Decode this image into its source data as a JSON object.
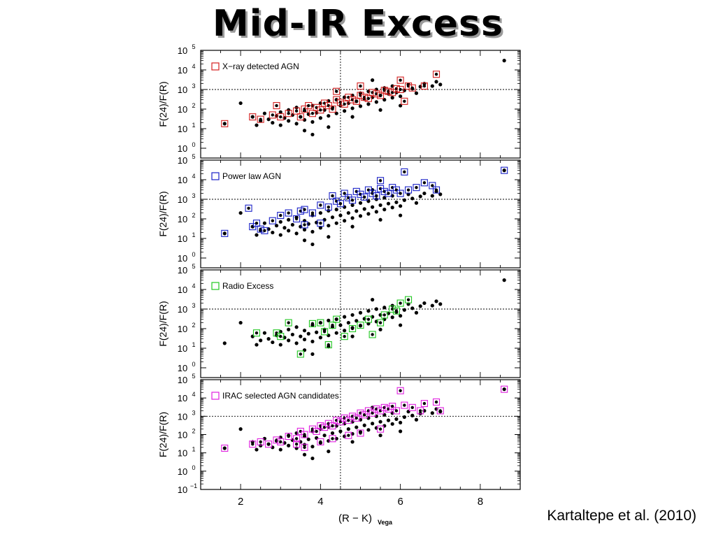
{
  "slide": {
    "title": "Mid-IR Excess",
    "citation": "Kartaltepe et al. (2010)"
  },
  "chart_data": {
    "type": "scatter",
    "xlabel": "(R − K)",
    "xlabel_subscript": "Vega",
    "ylabel": "F(24)/F(R)",
    "y_scale": "log",
    "xlim": [
      1.0,
      9.0
    ],
    "x_ticks": [
      "2",
      "4",
      "6",
      "8"
    ],
    "x_tick_values": [
      2,
      4,
      6,
      8
    ],
    "reference_lines": {
      "x": 4.5,
      "y": 1000
    },
    "background_series": {
      "name": "",
      "color": "#000000",
      "marker": "filled-circle",
      "description_of_trend": "y increases roughly from 10 at R-K≈2.5 to 1000 at R-K≈6.5",
      "points": [
        [
          2.3,
          40
        ],
        [
          2.4,
          15
        ],
        [
          2.5,
          25
        ],
        [
          2.6,
          60
        ],
        [
          2.7,
          30
        ],
        [
          2.8,
          20
        ],
        [
          2.9,
          45
        ],
        [
          3.0,
          15
        ],
        [
          3.0,
          70
        ],
        [
          3.1,
          35
        ],
        [
          3.2,
          25
        ],
        [
          3.2,
          90
        ],
        [
          3.3,
          50
        ],
        [
          3.4,
          18
        ],
        [
          3.4,
          120
        ],
        [
          3.5,
          40
        ],
        [
          3.6,
          28
        ],
        [
          3.6,
          80
        ],
        [
          3.7,
          55
        ],
        [
          3.8,
          22
        ],
        [
          3.8,
          150
        ],
        [
          3.9,
          65
        ],
        [
          4.0,
          35
        ],
        [
          4.0,
          200
        ],
        [
          4.1,
          90
        ],
        [
          4.2,
          45
        ],
        [
          4.2,
          260
        ],
        [
          4.3,
          120
        ],
        [
          4.4,
          60
        ],
        [
          4.4,
          300
        ],
        [
          4.5,
          150
        ],
        [
          4.6,
          80
        ],
        [
          4.6,
          400
        ],
        [
          4.7,
          200
        ],
        [
          4.8,
          110
        ],
        [
          4.8,
          500
        ],
        [
          4.9,
          250
        ],
        [
          5.0,
          140
        ],
        [
          5.0,
          650
        ],
        [
          5.1,
          320
        ],
        [
          5.2,
          180
        ],
        [
          5.2,
          800
        ],
        [
          5.3,
          400
        ],
        [
          5.4,
          230
        ],
        [
          5.4,
          1000
        ],
        [
          5.5,
          500
        ],
        [
          5.6,
          300
        ],
        [
          5.6,
          1200
        ],
        [
          5.7,
          600
        ],
        [
          5.8,
          380
        ],
        [
          5.8,
          1500
        ],
        [
          5.9,
          700
        ],
        [
          6.0,
          450
        ],
        [
          6.1,
          900
        ],
        [
          6.2,
          1800
        ],
        [
          6.3,
          1100
        ],
        [
          6.4,
          650
        ],
        [
          6.5,
          1400
        ],
        [
          6.6,
          2000
        ],
        [
          6.8,
          1500
        ],
        [
          6.9,
          2500
        ],
        [
          7.0,
          1800
        ],
        [
          3.6,
          8
        ],
        [
          4.2,
          12
        ],
        [
          2.0,
          200
        ],
        [
          1.6,
          18
        ],
        [
          5.3,
          3000
        ],
        [
          8.6,
          30000
        ],
        [
          3.8,
          5
        ],
        [
          4.8,
          40
        ],
        [
          5.5,
          90
        ],
        [
          6.0,
          150
        ]
      ]
    },
    "panels": [
      {
        "legend": "X−ray detected AGN",
        "color": "#d42020",
        "ylim_exp": [
          -0.5,
          5
        ],
        "y_tick_exponents": [
          0,
          1,
          2,
          3,
          4,
          5
        ],
        "y_ticks": [
          "10",
          "10",
          "10",
          "10",
          "10",
          "10"
        ],
        "y_tick_sup": [
          "0",
          "1",
          "2",
          "3",
          "4",
          "5"
        ],
        "points": [
          [
            1.6,
            18
          ],
          [
            2.3,
            40
          ],
          [
            2.5,
            30
          ],
          [
            2.8,
            50
          ],
          [
            2.9,
            150
          ],
          [
            3.0,
            40
          ],
          [
            3.2,
            60
          ],
          [
            3.4,
            80
          ],
          [
            3.5,
            40
          ],
          [
            3.6,
            100
          ],
          [
            3.7,
            150
          ],
          [
            3.8,
            60
          ],
          [
            3.9,
            120
          ],
          [
            4.0,
            90
          ],
          [
            4.1,
            200
          ],
          [
            4.2,
            150
          ],
          [
            4.3,
            100
          ],
          [
            4.4,
            300
          ],
          [
            4.5,
            220
          ],
          [
            4.6,
            180
          ],
          [
            4.7,
            400
          ],
          [
            4.8,
            300
          ],
          [
            4.9,
            250
          ],
          [
            5.0,
            500
          ],
          [
            5.1,
            400
          ],
          [
            5.2,
            350
          ],
          [
            5.3,
            700
          ],
          [
            5.4,
            600
          ],
          [
            5.5,
            500
          ],
          [
            5.6,
            900
          ],
          [
            5.7,
            800
          ],
          [
            5.8,
            700
          ],
          [
            5.9,
            1100
          ],
          [
            6.0,
            1000
          ],
          [
            6.1,
            250
          ],
          [
            6.2,
            1500
          ],
          [
            6.3,
            1200
          ],
          [
            6.6,
            1500
          ],
          [
            6.9,
            6000
          ],
          [
            4.4,
            800
          ],
          [
            5.0,
            1500
          ],
          [
            6.0,
            3000
          ]
        ]
      },
      {
        "legend": "Power law AGN",
        "color": "#1a22c8",
        "ylim_exp": [
          -0.5,
          5
        ],
        "y_tick_exponents": [
          0,
          1,
          2,
          3,
          4,
          5
        ],
        "y_ticks": [
          "10",
          "10",
          "10",
          "10",
          "10",
          "10"
        ],
        "y_tick_sup": [
          "0",
          "1",
          "2",
          "3",
          "4",
          "5"
        ],
        "points": [
          [
            1.6,
            18
          ],
          [
            2.2,
            350
          ],
          [
            2.3,
            40
          ],
          [
            2.4,
            60
          ],
          [
            2.5,
            30
          ],
          [
            2.6,
            25
          ],
          [
            2.8,
            80
          ],
          [
            3.0,
            150
          ],
          [
            3.2,
            200
          ],
          [
            3.4,
            100
          ],
          [
            3.5,
            250
          ],
          [
            3.6,
            300
          ],
          [
            3.8,
            200
          ],
          [
            4.0,
            500
          ],
          [
            4.2,
            400
          ],
          [
            4.3,
            1500
          ],
          [
            4.4,
            800
          ],
          [
            4.5,
            600
          ],
          [
            4.6,
            2000
          ],
          [
            4.7,
            1200
          ],
          [
            4.8,
            900
          ],
          [
            4.9,
            2500
          ],
          [
            5.0,
            1800
          ],
          [
            5.1,
            1300
          ],
          [
            5.2,
            3000
          ],
          [
            5.3,
            2000
          ],
          [
            5.4,
            1500
          ],
          [
            5.5,
            3500
          ],
          [
            5.6,
            2500
          ],
          [
            5.7,
            2000
          ],
          [
            5.8,
            4000
          ],
          [
            5.9,
            3000
          ],
          [
            6.0,
            2000
          ],
          [
            6.1,
            25000
          ],
          [
            6.2,
            3000
          ],
          [
            6.4,
            4000
          ],
          [
            6.6,
            7000
          ],
          [
            6.8,
            5000
          ],
          [
            6.9,
            3000
          ],
          [
            8.6,
            30000
          ],
          [
            5.5,
            9000
          ],
          [
            3.6,
            50
          ],
          [
            4.0,
            60
          ]
        ]
      },
      {
        "legend": "Radio Excess",
        "color": "#22c822",
        "ylim_exp": [
          -0.5,
          5
        ],
        "y_tick_exponents": [
          0,
          1,
          2,
          3,
          4,
          5
        ],
        "y_ticks": [
          "10",
          "10",
          "10",
          "10",
          "10",
          "10"
        ],
        "y_tick_sup": [
          "0",
          "1",
          "2",
          "3",
          "4",
          "5"
        ],
        "points": [
          [
            2.4,
            60
          ],
          [
            2.9,
            60
          ],
          [
            3.0,
            40
          ],
          [
            3.2,
            200
          ],
          [
            3.5,
            5
          ],
          [
            3.8,
            180
          ],
          [
            4.0,
            200
          ],
          [
            4.2,
            15
          ],
          [
            4.3,
            150
          ],
          [
            4.4,
            300
          ],
          [
            4.6,
            40
          ],
          [
            4.8,
            100
          ],
          [
            5.0,
            150
          ],
          [
            5.2,
            300
          ],
          [
            5.3,
            50
          ],
          [
            5.5,
            200
          ],
          [
            5.6,
            500
          ],
          [
            5.8,
            1000
          ],
          [
            5.9,
            800
          ],
          [
            6.0,
            2000
          ],
          [
            6.2,
            3000
          ],
          [
            4.1,
            70
          ]
        ]
      },
      {
        "legend": "IRAC selected AGN candidates",
        "color": "#e020e0",
        "ylim_exp": [
          -1,
          5
        ],
        "y_tick_exponents": [
          -1,
          0,
          1,
          2,
          3,
          4,
          5
        ],
        "y_ticks": [
          "10",
          "10",
          "10",
          "10",
          "10",
          "10",
          "10"
        ],
        "y_tick_sup": [
          "−1",
          "0",
          "1",
          "2",
          "3",
          "4",
          "5"
        ],
        "points": [
          [
            1.6,
            18
          ],
          [
            2.3,
            30
          ],
          [
            2.5,
            40
          ],
          [
            2.7,
            30
          ],
          [
            2.9,
            50
          ],
          [
            3.0,
            40
          ],
          [
            3.2,
            80
          ],
          [
            3.4,
            60
          ],
          [
            3.5,
            150
          ],
          [
            3.6,
            100
          ],
          [
            3.8,
            200
          ],
          [
            3.9,
            150
          ],
          [
            4.0,
            300
          ],
          [
            4.1,
            250
          ],
          [
            4.2,
            400
          ],
          [
            4.3,
            300
          ],
          [
            4.4,
            600
          ],
          [
            4.5,
            500
          ],
          [
            4.6,
            800
          ],
          [
            4.7,
            600
          ],
          [
            4.8,
            1000
          ],
          [
            4.9,
            800
          ],
          [
            5.0,
            1500
          ],
          [
            5.1,
            1200
          ],
          [
            5.2,
            2000
          ],
          [
            5.3,
            1500
          ],
          [
            5.4,
            2500
          ],
          [
            5.5,
            2000
          ],
          [
            5.6,
            3000
          ],
          [
            5.7,
            2500
          ],
          [
            5.8,
            3500
          ],
          [
            5.9,
            2000
          ],
          [
            6.0,
            25000
          ],
          [
            6.1,
            4000
          ],
          [
            6.3,
            3000
          ],
          [
            6.5,
            2000
          ],
          [
            6.6,
            5000
          ],
          [
            6.9,
            6000
          ],
          [
            7.0,
            2000
          ],
          [
            8.6,
            30000
          ],
          [
            3.4,
            30
          ],
          [
            3.6,
            20
          ],
          [
            4.0,
            40
          ],
          [
            4.3,
            60
          ],
          [
            4.7,
            90
          ],
          [
            5.0,
            120
          ],
          [
            5.5,
            200
          ]
        ]
      }
    ]
  }
}
